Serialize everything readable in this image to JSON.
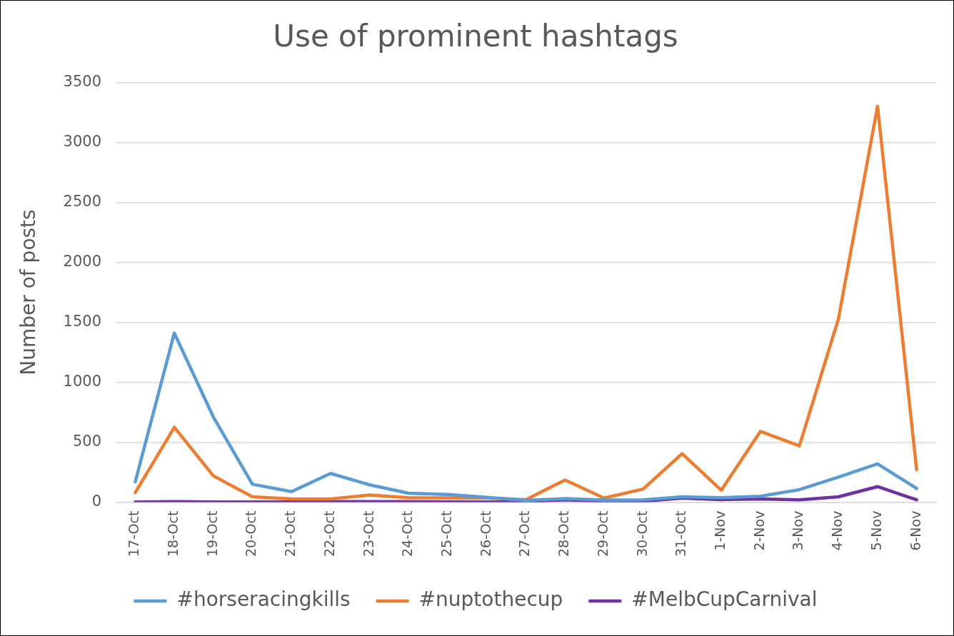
{
  "chart_data": {
    "type": "line",
    "title": "Use of prominent hashtags",
    "ylabel": "Number of posts",
    "categories": [
      "17-Oct",
      "18-Oct",
      "19-Oct",
      "20-Oct",
      "21-Oct",
      "22-Oct",
      "23-Oct",
      "24-Oct",
      "25-Oct",
      "26-Oct",
      "27-Oct",
      "28-Oct",
      "29-Oct",
      "30-Oct",
      "31-Oct",
      "1-Nov",
      "2-Nov",
      "3-Nov",
      "4-Nov",
      "5-Nov",
      "6-Nov"
    ],
    "series": [
      {
        "name": "#horseracingkills",
        "color": "#5b9bd5",
        "values": [
          170,
          1410,
          710,
          150,
          88,
          240,
          145,
          75,
          65,
          40,
          15,
          30,
          18,
          20,
          45,
          38,
          50,
          105,
          210,
          320,
          115
        ]
      },
      {
        "name": "#nuptothecup",
        "color": "#ed7d31",
        "values": [
          80,
          625,
          220,
          45,
          28,
          28,
          60,
          38,
          36,
          35,
          22,
          185,
          35,
          110,
          405,
          100,
          590,
          470,
          1530,
          3300,
          270
        ]
      },
      {
        "name": "#MelbCupCarnival",
        "color": "#7030a0",
        "values": [
          2,
          5,
          2,
          2,
          3,
          5,
          5,
          5,
          3,
          2,
          5,
          20,
          8,
          8,
          35,
          22,
          28,
          20,
          45,
          130,
          20
        ]
      }
    ],
    "ylim": [
      0,
      3500
    ],
    "yticks": [
      0,
      500,
      1000,
      1500,
      2000,
      2500,
      3000,
      3500
    ],
    "grid": "y",
    "legend": "bottom"
  }
}
